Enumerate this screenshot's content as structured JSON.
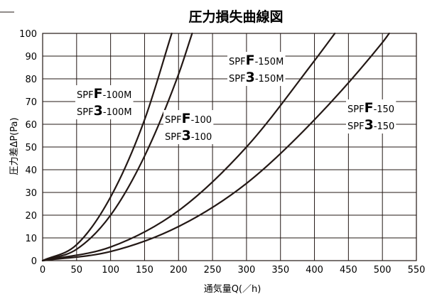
{
  "chart_data": {
    "type": "line",
    "title": "圧力損失曲線図",
    "xlabel": "通気量Q(／h)",
    "ylabel": "圧力差ΔP(Pa)",
    "xlim": [
      0,
      550
    ],
    "ylim": [
      0,
      100
    ],
    "x_ticks": [
      "0",
      "50",
      "100",
      "150",
      "200",
      "250",
      "300",
      "350",
      "400",
      "450",
      "500",
      "550"
    ],
    "y_ticks": [
      "0",
      "10",
      "20",
      "30",
      "40",
      "50",
      "60",
      "70",
      "80",
      "90",
      "100"
    ],
    "grid": true,
    "series": [
      {
        "name": "SPFF-100M / SPF3-100M",
        "x": [
          0,
          50,
          100,
          150,
          190
        ],
        "y": [
          0,
          7,
          28,
          62,
          100
        ]
      },
      {
        "name": "SPFF-100 / SPF3-100",
        "x": [
          0,
          50,
          100,
          150,
          200,
          220
        ],
        "y": [
          0,
          5,
          20,
          46,
          82,
          100
        ]
      },
      {
        "name": "SPFF-150M / SPF3-150M",
        "x": [
          0,
          100,
          200,
          300,
          400,
          430
        ],
        "y": [
          0,
          6,
          22,
          50,
          88,
          100
        ]
      },
      {
        "name": "SPFF-150 / SPF3-150",
        "x": [
          0,
          100,
          200,
          300,
          400,
          500,
          510
        ],
        "y": [
          0,
          4,
          15,
          34,
          62,
          96,
          100
        ]
      }
    ],
    "labels": [
      {
        "series": 0,
        "line1": [
          "SPF",
          "F",
          "-100M"
        ],
        "line2": [
          "SPF",
          "3",
          "-100M"
        ]
      },
      {
        "series": 1,
        "line1": [
          "SPF",
          "F",
          "-100"
        ],
        "line2": [
          "SPF",
          "3",
          "-100"
        ]
      },
      {
        "series": 2,
        "line1": [
          "SPF",
          "F",
          "-150M"
        ],
        "line2": [
          "SPF",
          "3",
          "-150M"
        ]
      },
      {
        "series": 3,
        "line1": [
          "SPF",
          "F",
          "-150"
        ],
        "line2": [
          "SPF",
          "3",
          "-150"
        ]
      }
    ],
    "color": "#231815"
  }
}
